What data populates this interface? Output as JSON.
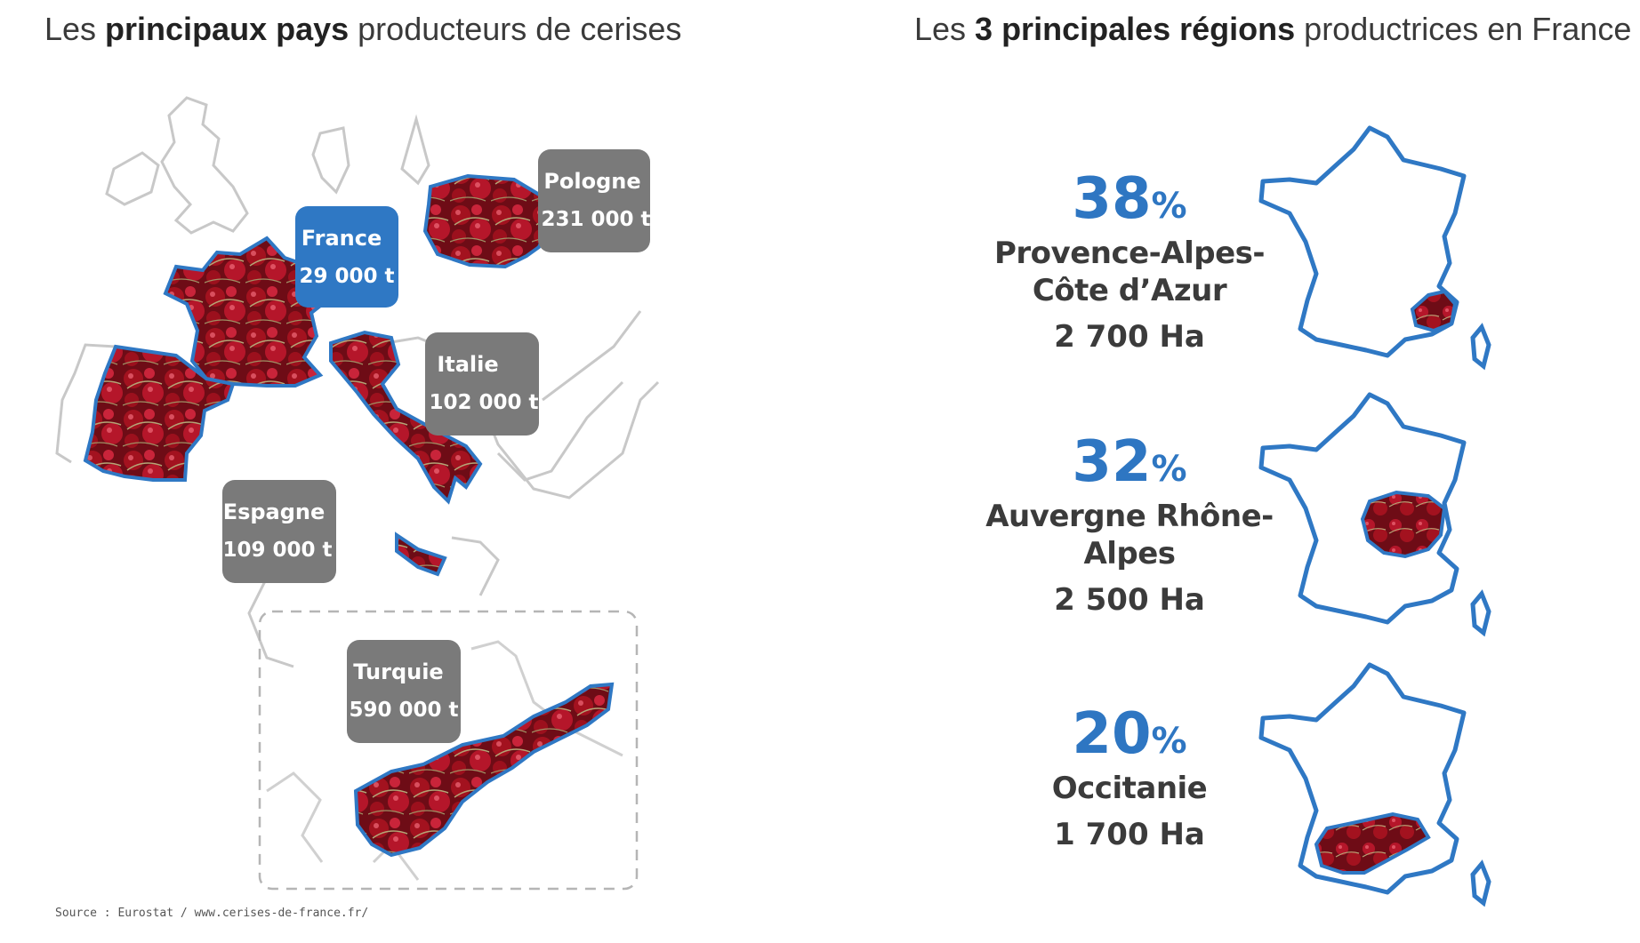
{
  "titles": {
    "left": {
      "pre": "Les ",
      "bold": "principaux pays",
      "post": " producteurs de cerises"
    },
    "right": {
      "pre": "Les ",
      "bold": "3 principales régions",
      "post": " productrices en France"
    }
  },
  "countries": [
    {
      "name": "France",
      "value": "29 000 t",
      "color": "#2f78c4"
    },
    {
      "name": "Pologne",
      "value": "231 000 t",
      "color": "#7a7a7a"
    },
    {
      "name": "Italie",
      "value": "102 000 t",
      "color": "#7a7a7a"
    },
    {
      "name": "Espagne",
      "value": "109 000 t",
      "color": "#7a7a7a"
    },
    {
      "name": "Turquie",
      "value": "590 000 t",
      "color": "#7a7a7a"
    }
  ],
  "source": "Source : Eurostat / www.cerises-de-france.fr/",
  "regions": [
    {
      "pct": "38",
      "pct_sign": "%",
      "name_line1": "Provence-Alpes-",
      "name_line2": "Côte d’Azur",
      "area": "2 700 Ha"
    },
    {
      "pct": "32",
      "pct_sign": "%",
      "name_line1": "Auvergne Rhône-",
      "name_line2": "Alpes",
      "area": "2 500 Ha"
    },
    {
      "pct": "20",
      "pct_sign": "%",
      "name_line1": "Occitanie",
      "name_line2": "",
      "area": "1 700 Ha"
    }
  ],
  "colors": {
    "accent_blue": "#2f78c4",
    "cherry_red": "#8e1420",
    "label_gray": "#7a7a7a"
  }
}
